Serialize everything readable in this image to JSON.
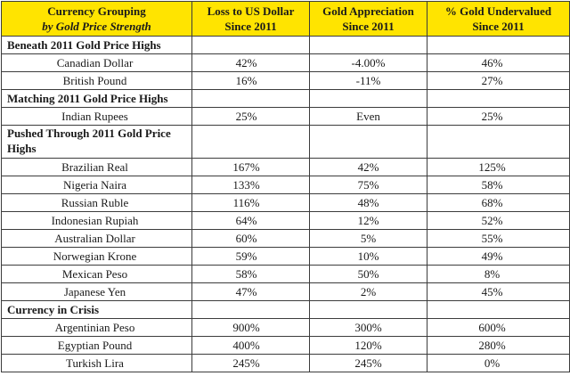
{
  "header": {
    "col1_line1": "Currency Grouping",
    "col1_line2": "by Gold Price Strength",
    "col2_line1": "Loss to US Dollar",
    "col2_line2": "Since 2011",
    "col3_line1": "Gold Appreciation",
    "col3_line2": "Since 2011",
    "col4_line1": "% Gold Undervalued",
    "col4_line2": "Since 2011"
  },
  "groups": [
    {
      "title": "Beneath 2011 Gold Price Highs",
      "rows": [
        {
          "currency": "Canadian Dollar",
          "loss": "42%",
          "gold": "-4.00%",
          "undervalued": "46%"
        },
        {
          "currency": "British Pound",
          "loss": "16%",
          "gold": "-11%",
          "undervalued": "27%"
        }
      ]
    },
    {
      "title": "Matching 2011 Gold Price Highs",
      "rows": [
        {
          "currency": "Indian Rupees",
          "loss": "25%",
          "gold": "Even",
          "undervalued": "25%"
        }
      ]
    },
    {
      "title": "Pushed Through 2011 Gold Price Highs",
      "rows": [
        {
          "currency": "Brazilian Real",
          "loss": "167%",
          "gold": "42%",
          "undervalued": "125%"
        },
        {
          "currency": "Nigeria Naira",
          "loss": "133%",
          "gold": "75%",
          "undervalued": "58%"
        },
        {
          "currency": "Russian Ruble",
          "loss": "116%",
          "gold": "48%",
          "undervalued": "68%"
        },
        {
          "currency": "Indonesian Rupiah",
          "loss": "64%",
          "gold": "12%",
          "undervalued": "52%"
        },
        {
          "currency": "Australian Dollar",
          "loss": "60%",
          "gold": "5%",
          "undervalued": "55%"
        },
        {
          "currency": "Norwegian Krone",
          "loss": "59%",
          "gold": "10%",
          "undervalued": "49%"
        },
        {
          "currency": "Mexican Peso",
          "loss": "58%",
          "gold": "50%",
          "undervalued": "8%"
        },
        {
          "currency": "Japanese Yen",
          "loss": "47%",
          "gold": "2%",
          "undervalued": "45%"
        }
      ]
    },
    {
      "title": "Currency in Crisis",
      "rows": [
        {
          "currency": "Argentinian Peso",
          "loss": "900%",
          "gold": "300%",
          "undervalued": "600%"
        },
        {
          "currency": "Egyptian Pound",
          "loss": "400%",
          "gold": "120%",
          "undervalued": "280%"
        },
        {
          "currency": "Turkish Lira",
          "loss": "245%",
          "gold": "245%",
          "undervalued": "0%"
        }
      ]
    }
  ],
  "colors": {
    "header_background": "#ffe400",
    "border": "#3c3c3c"
  },
  "chart_data": {
    "type": "table",
    "columns": [
      "Currency Grouping by Gold Price Strength",
      "Loss to US Dollar Since 2011",
      "Gold Appreciation Since 2011",
      "% Gold Undervalued Since 2011"
    ],
    "groups": [
      {
        "name": "Beneath 2011 Gold Price Highs",
        "rows": [
          [
            "Canadian Dollar",
            42,
            -4.0,
            46
          ],
          [
            "British Pound",
            16,
            -11,
            27
          ]
        ]
      },
      {
        "name": "Matching 2011 Gold Price Highs",
        "rows": [
          [
            "Indian Rupees",
            25,
            "Even",
            25
          ]
        ]
      },
      {
        "name": "Pushed Through 2011 Gold Price Highs",
        "rows": [
          [
            "Brazilian Real",
            167,
            42,
            125
          ],
          [
            "Nigeria Naira",
            133,
            75,
            58
          ],
          [
            "Russian Ruble",
            116,
            48,
            68
          ],
          [
            "Indonesian Rupiah",
            64,
            12,
            52
          ],
          [
            "Australian Dollar",
            60,
            5,
            55
          ],
          [
            "Norwegian Krone",
            59,
            10,
            49
          ],
          [
            "Mexican Peso",
            58,
            50,
            8
          ],
          [
            "Japanese Yen",
            47,
            2,
            45
          ]
        ]
      },
      {
        "name": "Currency in Crisis",
        "rows": [
          [
            "Argentinian Peso",
            900,
            300,
            600
          ],
          [
            "Egyptian Pound",
            400,
            120,
            280
          ],
          [
            "Turkish Lira",
            245,
            245,
            0
          ]
        ]
      }
    ]
  }
}
